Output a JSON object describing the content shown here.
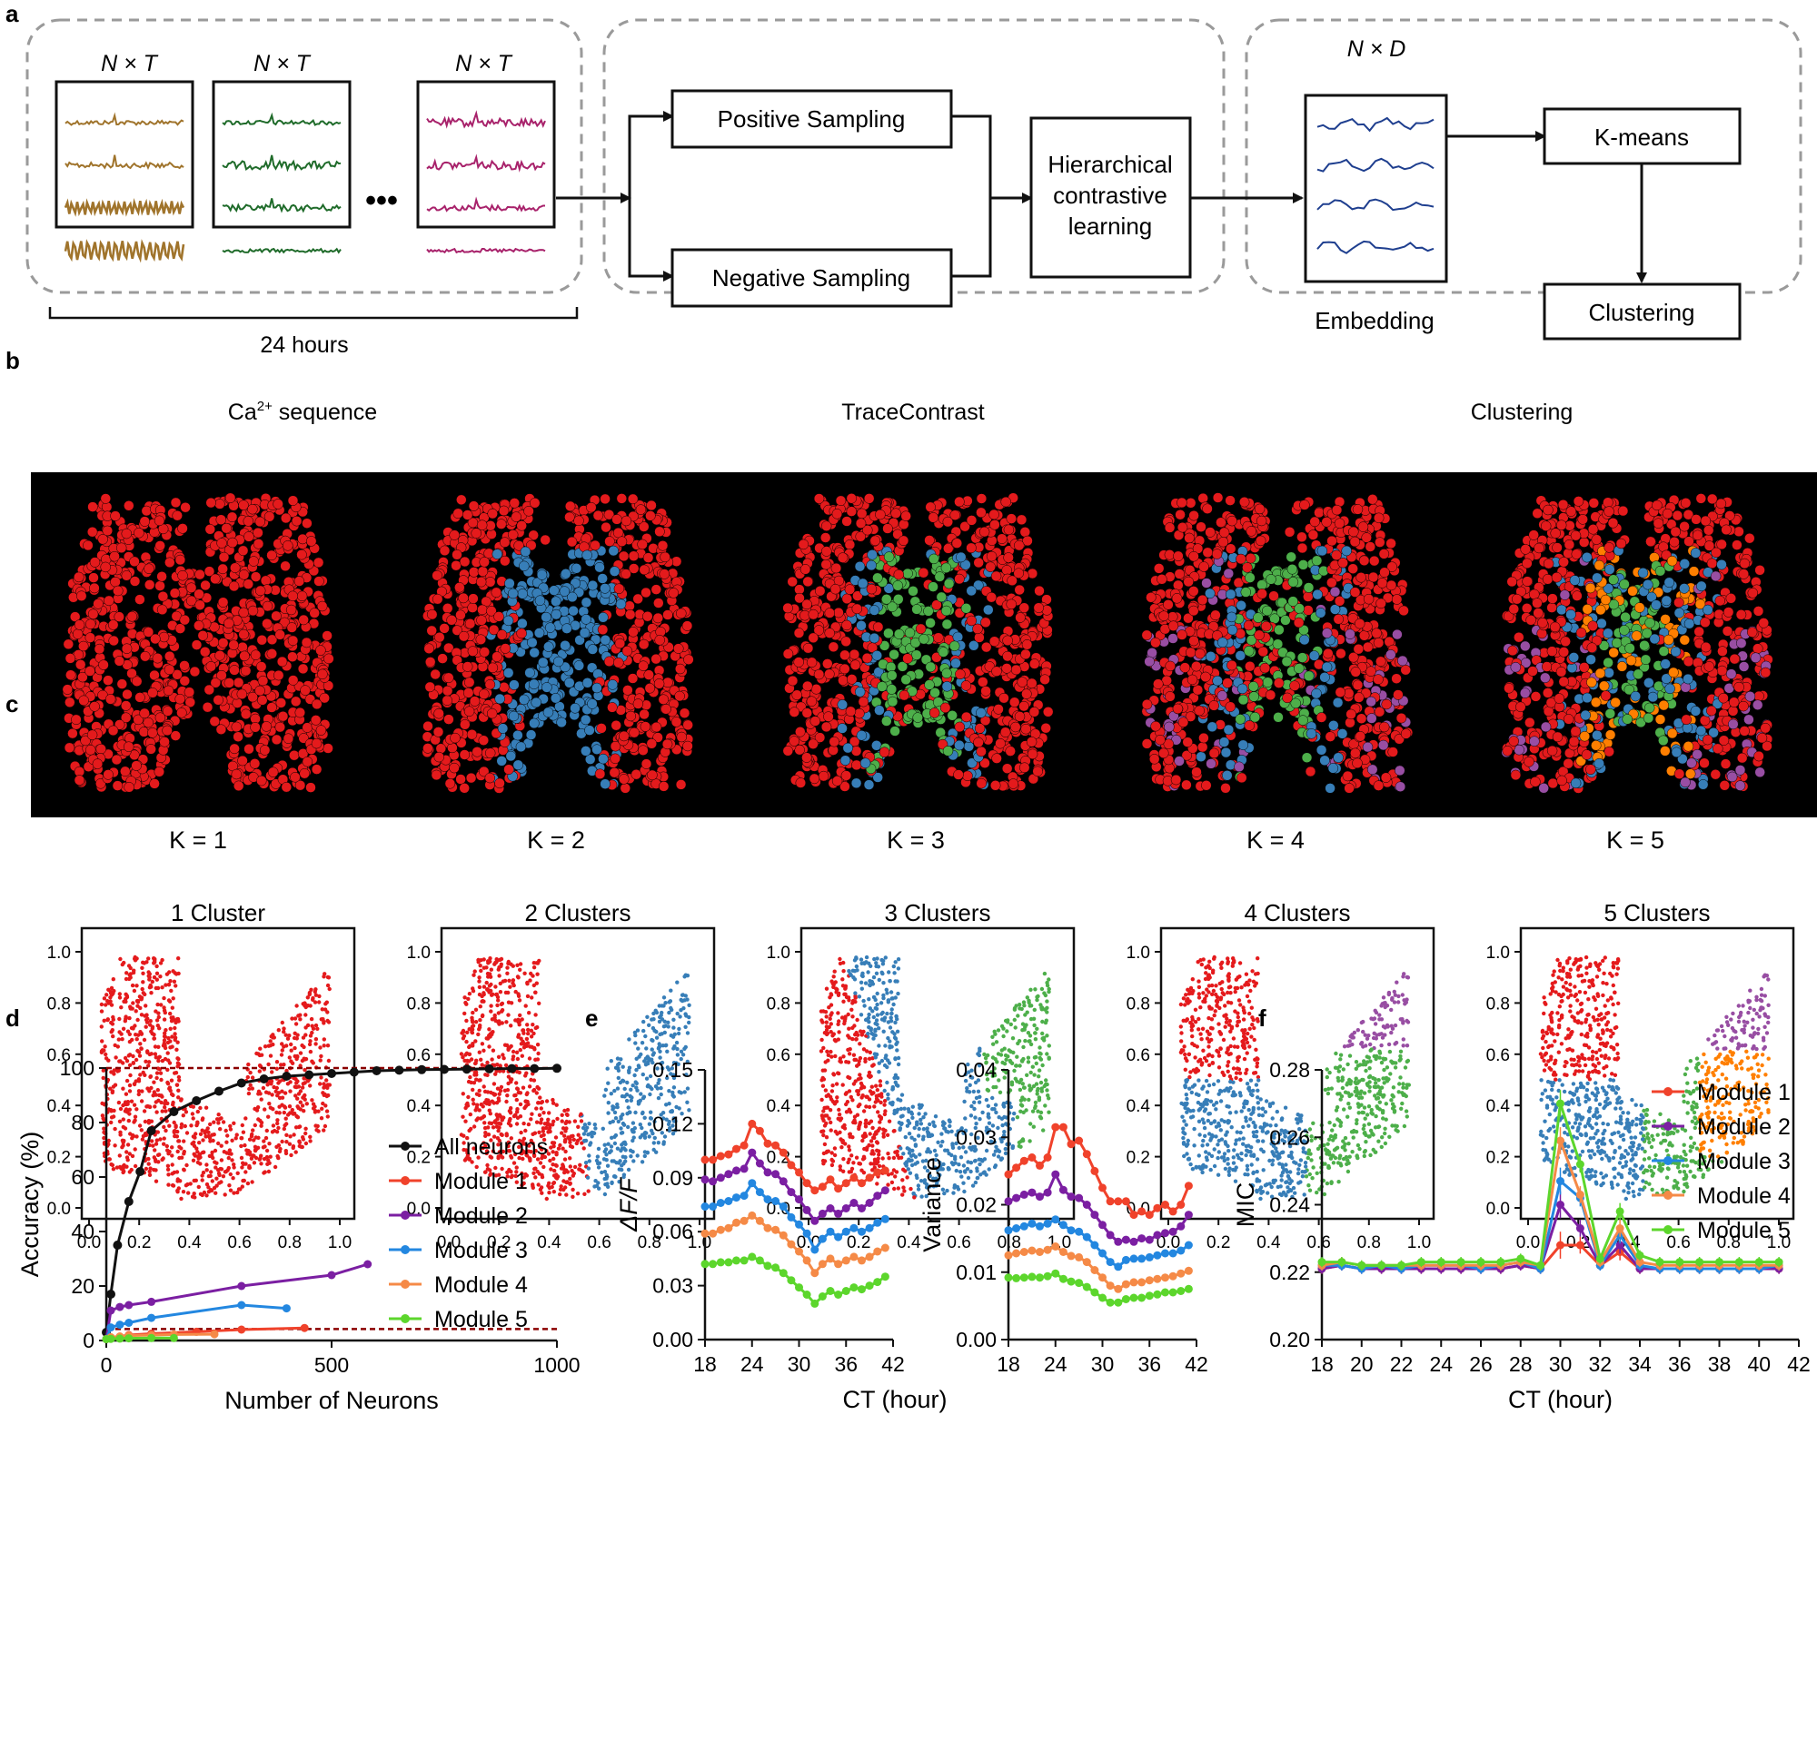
{
  "panel_letters": [
    "a",
    "b",
    "c",
    "d",
    "e",
    "f"
  ],
  "colors": {
    "red": "#e41a1c",
    "blue": "#377eb8",
    "green": "#4daf4a",
    "purple": "#984ea3",
    "orange": "#ff7f00",
    "trace_brown": "#a0742c",
    "trace_green": "#1f6b2a",
    "trace_magenta": "#a8226b",
    "embed_blue": "#1f3f8f",
    "m1": "#f0422b",
    "m2": "#7b1fa2",
    "m3": "#2387e0",
    "m4": "#f58a47",
    "m5": "#5cd62c",
    "refline": "#8b0000"
  },
  "panel_a": {
    "matrix_label": "N × T",
    "dots": "•••",
    "hours_label": "24 hours",
    "ca_label": "Ca",
    "ca_sup": "2+",
    "ca_rest": " sequence",
    "positive": "Positive Sampling",
    "negative": "Negative Sampling",
    "hcl": [
      "Hierarchical",
      "contrastive",
      "learning"
    ],
    "embed_matrix": "N × D",
    "embedding": "Embedding",
    "kmeans": "K-means",
    "clustering_box": "Clustering",
    "section_tracecontrast": "TraceContrast",
    "section_clustering": "Clustering"
  },
  "panel_b": {
    "labels": [
      "K = 1",
      "K = 2",
      "K = 3",
      "K = 4",
      "K = 5"
    ]
  },
  "panel_c": {
    "titles": [
      "1 Cluster",
      "2 Clusters",
      "3 Clusters",
      "4 Clusters",
      "5 Clusters"
    ],
    "ticks": [
      "0.0",
      "0.2",
      "0.4",
      "0.6",
      "0.8",
      "1.0"
    ]
  },
  "chart_data": [
    {
      "panel": "d",
      "type": "line",
      "xlabel": "Number of Neurons",
      "ylabel": "Accuracy (%)",
      "xlim": [
        0,
        1000
      ],
      "ylim": [
        0,
        100
      ],
      "xticks": [
        0,
        500,
        1000
      ],
      "yticks": [
        0,
        20,
        40,
        60,
        80,
        100
      ],
      "reference_lines": [
        100,
        4.2
      ],
      "series": [
        {
          "name": "All neurons",
          "color": "#111111",
          "x": [
            0,
            10,
            25,
            50,
            75,
            100,
            150,
            200,
            250,
            300,
            350,
            400,
            450,
            500,
            550,
            600,
            650,
            700,
            750,
            800,
            850,
            900,
            950,
            1000
          ],
          "y": [
            3,
            17,
            35,
            51,
            62,
            77,
            84,
            88,
            91.5,
            94.5,
            96,
            97,
            97.5,
            98,
            98.5,
            99,
            99.2,
            99.4,
            99.5,
            99.6,
            99.7,
            99.8,
            99.8,
            99.9
          ]
        },
        {
          "name": "Module 1",
          "color": "#f0422b",
          "x": [
            0,
            10,
            50,
            100,
            200,
            300,
            440
          ],
          "y": [
            0.5,
            1,
            2,
            2.5,
            3.2,
            4,
            4.6
          ]
        },
        {
          "name": "Module 2",
          "color": "#7b1fa2",
          "x": [
            0,
            10,
            30,
            50,
            100,
            300,
            500,
            580
          ],
          "y": [
            0.5,
            11,
            12.3,
            13,
            14.2,
            20,
            24,
            28
          ]
        },
        {
          "name": "Module 3",
          "color": "#2387e0",
          "x": [
            0,
            10,
            30,
            50,
            100,
            300,
            400
          ],
          "y": [
            0.5,
            4.8,
            5.8,
            6.5,
            8.3,
            13,
            11.8
          ]
        },
        {
          "name": "Module 4",
          "color": "#f58a47",
          "x": [
            0,
            10,
            30,
            50,
            100,
            150,
            240
          ],
          "y": [
            0.5,
            1.2,
            1.5,
            1.8,
            2,
            2.2,
            2.3
          ]
        },
        {
          "name": "Module 5",
          "color": "#5cd62c",
          "x": [
            0,
            10,
            30,
            50,
            100,
            150
          ],
          "y": [
            0.5,
            0.6,
            0.7,
            0.8,
            0.9,
            0.9
          ]
        }
      ]
    },
    {
      "panel": "e-left",
      "type": "line",
      "xlabel": "CT (hour)",
      "ylabel": "ΔF/F",
      "xlim": [
        18,
        42
      ],
      "ylim": [
        0,
        0.15
      ],
      "xticks": [
        18,
        24,
        30,
        36,
        42
      ],
      "yticks": [
        "0.00",
        "0.03",
        "0.06",
        "0.09",
        "0.12",
        "0.15"
      ],
      "x": [
        18,
        19,
        20,
        21,
        22,
        23,
        24,
        25,
        26,
        27,
        28,
        29,
        30,
        31,
        32,
        33,
        34,
        35,
        36,
        37,
        38,
        39,
        40,
        41
      ],
      "series": [
        {
          "name": "Module 1",
          "color": "#f0422b",
          "values": [
            0.1,
            0.1,
            0.102,
            0.103,
            0.106,
            0.108,
            0.12,
            0.116,
            0.109,
            0.108,
            0.104,
            0.097,
            0.093,
            0.087,
            0.083,
            0.085,
            0.089,
            0.084,
            0.087,
            0.09,
            0.087,
            0.09,
            0.093,
            0.094
          ]
        },
        {
          "name": "Module 2",
          "color": "#7b1fa2",
          "values": [
            0.089,
            0.088,
            0.09,
            0.092,
            0.094,
            0.095,
            0.104,
            0.098,
            0.093,
            0.092,
            0.088,
            0.082,
            0.078,
            0.072,
            0.066,
            0.07,
            0.073,
            0.07,
            0.073,
            0.076,
            0.073,
            0.076,
            0.08,
            0.083
          ]
        },
        {
          "name": "Module 3",
          "color": "#2387e0",
          "values": [
            0.074,
            0.074,
            0.076,
            0.077,
            0.079,
            0.08,
            0.087,
            0.082,
            0.078,
            0.077,
            0.074,
            0.068,
            0.064,
            0.059,
            0.05,
            0.056,
            0.06,
            0.057,
            0.06,
            0.062,
            0.06,
            0.062,
            0.065,
            0.067
          ]
        },
        {
          "name": "Module 4",
          "color": "#f58a47",
          "values": [
            0.059,
            0.059,
            0.061,
            0.062,
            0.065,
            0.066,
            0.069,
            0.066,
            0.062,
            0.061,
            0.058,
            0.053,
            0.049,
            0.044,
            0.037,
            0.042,
            0.045,
            0.042,
            0.044,
            0.046,
            0.044,
            0.046,
            0.049,
            0.051
          ]
        },
        {
          "name": "Module 5",
          "color": "#5cd62c",
          "values": [
            0.042,
            0.042,
            0.043,
            0.043,
            0.044,
            0.044,
            0.046,
            0.044,
            0.041,
            0.04,
            0.037,
            0.033,
            0.029,
            0.025,
            0.02,
            0.024,
            0.027,
            0.025,
            0.027,
            0.029,
            0.028,
            0.03,
            0.032,
            0.035
          ]
        }
      ]
    },
    {
      "panel": "e-right",
      "type": "line",
      "xlabel": "CT (hour)",
      "ylabel": "Variance",
      "xlim": [
        18,
        42
      ],
      "ylim": [
        0,
        0.04
      ],
      "xticks": [
        18,
        24,
        30,
        36,
        42
      ],
      "yticks": [
        "0.00",
        "0.01",
        "0.02",
        "0.03",
        "0.04"
      ],
      "x": [
        18,
        19,
        20,
        21,
        22,
        23,
        24,
        25,
        26,
        27,
        28,
        29,
        30,
        31,
        32,
        33,
        34,
        35,
        36,
        37,
        38,
        39,
        40,
        41
      ],
      "series": [
        {
          "name": "Module 1",
          "color": "#f0422b",
          "values": [
            0.0245,
            0.0255,
            0.0265,
            0.027,
            0.0258,
            0.027,
            0.0315,
            0.0315,
            0.029,
            0.0295,
            0.0275,
            0.025,
            0.0225,
            0.0205,
            0.0205,
            0.0205,
            0.0185,
            0.019,
            0.0185,
            0.0195,
            0.02,
            0.019,
            0.02,
            0.0228
          ]
        },
        {
          "name": "Module 2",
          "color": "#7b1fa2",
          "values": [
            0.0205,
            0.021,
            0.0215,
            0.0218,
            0.0212,
            0.0218,
            0.0245,
            0.0222,
            0.0212,
            0.021,
            0.02,
            0.0185,
            0.017,
            0.0155,
            0.0145,
            0.0148,
            0.0145,
            0.015,
            0.0148,
            0.0155,
            0.0158,
            0.016,
            0.0168,
            0.0185
          ]
        },
        {
          "name": "Module 3",
          "color": "#2387e0",
          "values": [
            0.0162,
            0.0165,
            0.0168,
            0.0172,
            0.0168,
            0.0172,
            0.0178,
            0.017,
            0.0162,
            0.016,
            0.0152,
            0.014,
            0.0128,
            0.0115,
            0.0108,
            0.0118,
            0.012,
            0.012,
            0.0122,
            0.0125,
            0.0128,
            0.0128,
            0.0132,
            0.014
          ]
        },
        {
          "name": "Module 4",
          "color": "#f58a47",
          "values": [
            0.0125,
            0.0128,
            0.013,
            0.0132,
            0.013,
            0.0133,
            0.0138,
            0.013,
            0.0124,
            0.0122,
            0.0115,
            0.0103,
            0.0092,
            0.008,
            0.0075,
            0.0082,
            0.0085,
            0.0085,
            0.0088,
            0.009,
            0.0092,
            0.0094,
            0.0098,
            0.0102
          ]
        },
        {
          "name": "Module 5",
          "color": "#5cd62c",
          "values": [
            0.0092,
            0.0091,
            0.0092,
            0.0093,
            0.0092,
            0.0094,
            0.0098,
            0.009,
            0.0086,
            0.0084,
            0.0078,
            0.007,
            0.0062,
            0.0055,
            0.0055,
            0.006,
            0.0062,
            0.0062,
            0.0065,
            0.0067,
            0.007,
            0.007,
            0.0072,
            0.0075
          ]
        }
      ]
    },
    {
      "panel": "f",
      "type": "line",
      "xlabel": "CT (hour)",
      "ylabel": "MIC",
      "xlim": [
        18,
        42
      ],
      "ylim": [
        0.2,
        0.28
      ],
      "xticks": [
        18,
        20,
        22,
        24,
        26,
        28,
        30,
        32,
        34,
        36,
        38,
        40,
        42
      ],
      "yticks": [
        "0.20",
        "0.22",
        "0.24",
        "0.26",
        "0.28"
      ],
      "x": [
        18,
        19,
        20,
        21,
        22,
        23,
        24,
        25,
        26,
        27,
        28,
        29,
        30,
        31,
        32,
        33,
        34,
        35,
        36,
        37,
        38,
        39,
        40,
        41
      ],
      "series": [
        {
          "name": "Module 1",
          "color": "#f0422b",
          "values": [
            0.221,
            0.222,
            0.221,
            0.221,
            0.221,
            0.221,
            0.221,
            0.221,
            0.221,
            0.221,
            0.222,
            0.221,
            0.228,
            0.228,
            0.222,
            0.226,
            0.221,
            0.221,
            0.221,
            0.221,
            0.221,
            0.221,
            0.221,
            0.221
          ]
        },
        {
          "name": "Module 2",
          "color": "#7b1fa2",
          "values": [
            0.221,
            0.222,
            0.221,
            0.221,
            0.221,
            0.221,
            0.221,
            0.221,
            0.221,
            0.221,
            0.222,
            0.221,
            0.24,
            0.233,
            0.222,
            0.228,
            0.221,
            0.221,
            0.221,
            0.221,
            0.221,
            0.221,
            0.221,
            0.221
          ]
        },
        {
          "name": "Module 3",
          "color": "#2387e0",
          "values": [
            0.222,
            0.222,
            0.221,
            0.222,
            0.221,
            0.222,
            0.222,
            0.222,
            0.221,
            0.222,
            0.223,
            0.221,
            0.247,
            0.242,
            0.222,
            0.231,
            0.222,
            0.221,
            0.221,
            0.221,
            0.221,
            0.221,
            0.221,
            0.222
          ]
        },
        {
          "name": "Module 4",
          "color": "#f58a47",
          "values": [
            0.222,
            0.223,
            0.222,
            0.222,
            0.222,
            0.222,
            0.222,
            0.222,
            0.222,
            0.222,
            0.223,
            0.222,
            0.259,
            0.243,
            0.223,
            0.233,
            0.223,
            0.222,
            0.222,
            0.222,
            0.222,
            0.222,
            0.222,
            0.222
          ]
        },
        {
          "name": "Module 5",
          "color": "#5cd62c",
          "values": [
            0.223,
            0.223,
            0.222,
            0.222,
            0.222,
            0.223,
            0.223,
            0.223,
            0.223,
            0.223,
            0.224,
            0.222,
            0.27,
            0.252,
            0.224,
            0.238,
            0.225,
            0.223,
            0.223,
            0.223,
            0.223,
            0.223,
            0.223,
            0.223
          ]
        }
      ]
    }
  ]
}
